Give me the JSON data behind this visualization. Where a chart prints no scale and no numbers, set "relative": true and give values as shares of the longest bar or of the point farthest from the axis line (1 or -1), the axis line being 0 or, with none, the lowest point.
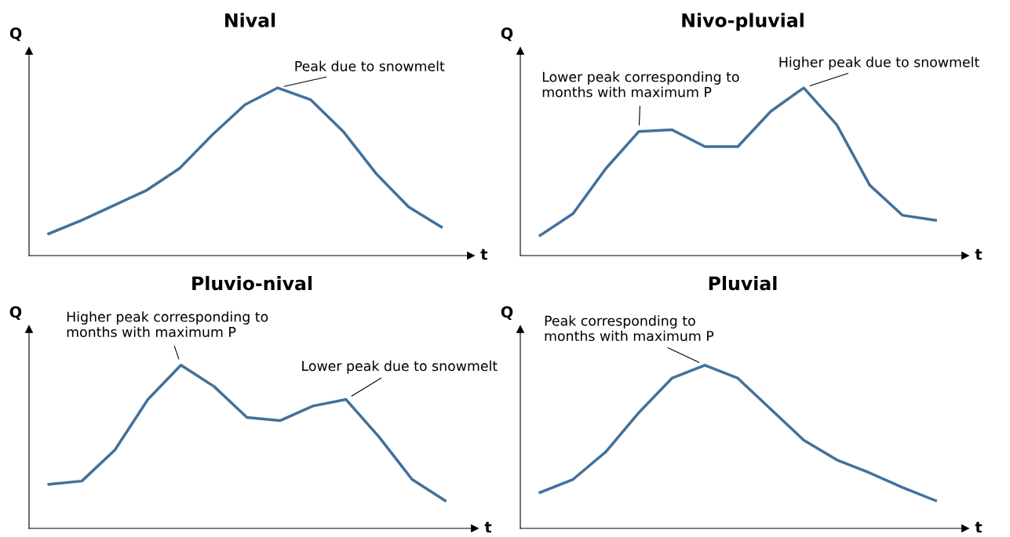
{
  "chart_data": [
    {
      "type": "line",
      "title": "Nival",
      "xlabel": "t",
      "ylabel": "Q",
      "relative": true,
      "line_style": "solid",
      "categories": [
        null,
        null,
        null,
        null,
        null,
        null,
        null,
        null,
        null,
        null,
        null,
        null,
        null
      ],
      "series": [
        {
          "color": "#41719c",
          "values": [
            0.13,
            0.21,
            0.3,
            0.39,
            0.52,
            0.72,
            0.9,
            1.0,
            0.93,
            0.74,
            0.49,
            0.29,
            0.17
          ]
        }
      ],
      "annotations": [
        "Peak due to snowmelt"
      ]
    },
    {
      "type": "line",
      "title": "Nivo-pluvial",
      "xlabel": "t",
      "ylabel": "Q",
      "relative": true,
      "line_style": "solid",
      "categories": [
        null,
        null,
        null,
        null,
        null,
        null,
        null,
        null,
        null,
        null,
        null,
        null,
        null
      ],
      "series": [
        {
          "color": "#41719c",
          "values": [
            0.12,
            0.25,
            0.52,
            0.74,
            0.75,
            0.65,
            0.65,
            0.86,
            1.0,
            0.78,
            0.42,
            0.24,
            0.21
          ]
        }
      ],
      "annotations": [
        "Lower peak corresponding to\nmonths with maximum P",
        "Higher peak due to snowmelt"
      ]
    },
    {
      "type": "line",
      "title": "Pluvio-nival",
      "xlabel": "t",
      "ylabel": "Q",
      "relative": true,
      "line_style": "solid",
      "categories": [
        null,
        null,
        null,
        null,
        null,
        null,
        null,
        null,
        null,
        null,
        null,
        null,
        null
      ],
      "series": [
        {
          "color": "#41719c",
          "values": [
            0.27,
            0.29,
            0.48,
            0.79,
            1.0,
            0.87,
            0.68,
            0.66,
            0.75,
            0.79,
            0.56,
            0.3,
            0.17
          ]
        }
      ],
      "annotations": [
        "Higher peak corresponding to\nmonths with maximum P",
        "Lower peak due to snowmelt"
      ]
    },
    {
      "type": "line",
      "title": "Pluvial",
      "xlabel": "t",
      "ylabel": "Q",
      "relative": true,
      "line_style": "solid",
      "categories": [
        null,
        null,
        null,
        null,
        null,
        null,
        null,
        null,
        null,
        null,
        null,
        null,
        null
      ],
      "series": [
        {
          "color": "#41719c",
          "values": [
            0.22,
            0.3,
            0.47,
            0.71,
            0.92,
            1.0,
            0.92,
            0.73,
            0.54,
            0.42,
            0.34,
            0.25,
            0.17
          ]
        }
      ],
      "annotations": [
        "Peak corresponding to\nmonths with maximum P"
      ]
    }
  ]
}
